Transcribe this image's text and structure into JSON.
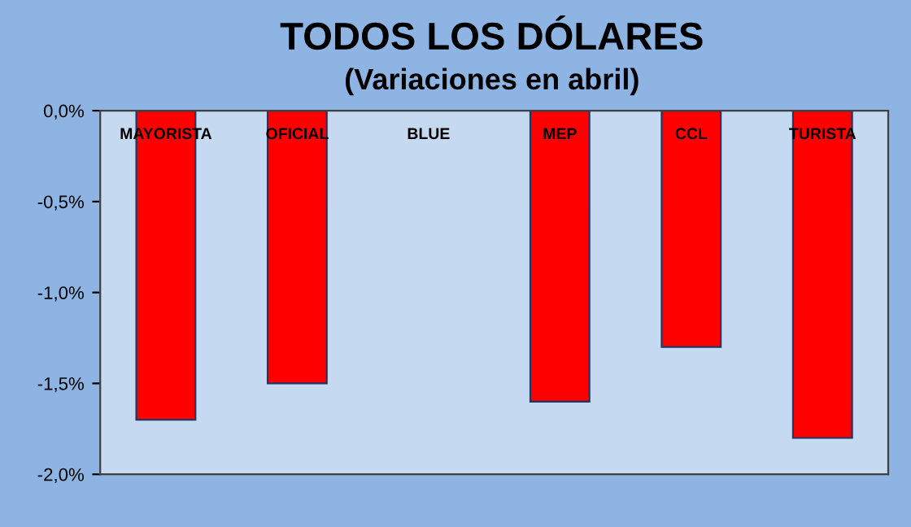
{
  "chart_data": {
    "type": "bar",
    "title": "TODOS LOS DÓLARES",
    "subtitle": "(Variaciones en abril)",
    "categories": [
      "MAYORISTA",
      "OFICIAL",
      "BLUE",
      "MEP",
      "CCL",
      "TURISTA"
    ],
    "values": [
      -1.7,
      -1.5,
      0,
      -1.6,
      -1.3,
      -1.8
    ],
    "color": "#ff0000",
    "ylim": [
      -2,
      0
    ],
    "yticks": [
      {
        "value": -2,
        "label": "-2,0%"
      },
      {
        "value": -1.5,
        "label": "-1,5%"
      },
      {
        "value": -1,
        "label": "-1,0%"
      },
      {
        "value": -0.5,
        "label": "-0,5%"
      },
      {
        "value": 0,
        "label": "0,0%"
      }
    ],
    "grid": false
  }
}
